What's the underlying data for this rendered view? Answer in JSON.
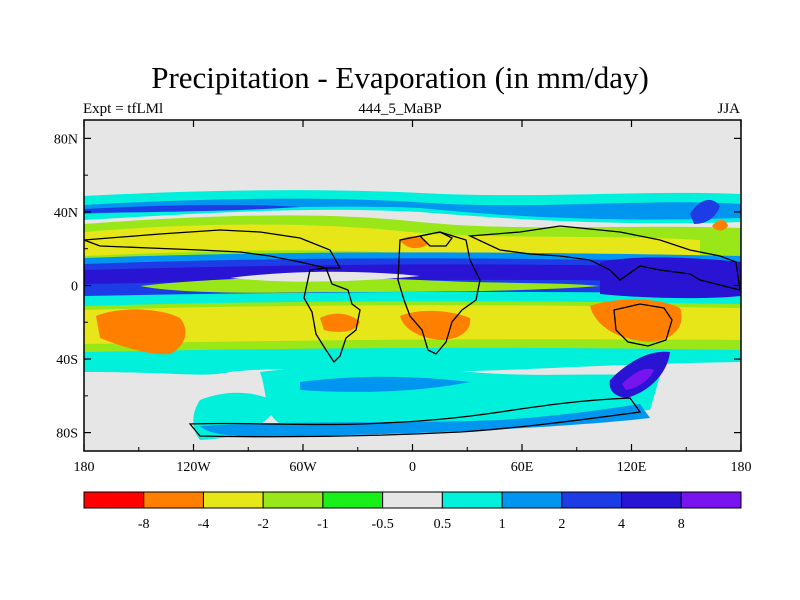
{
  "chart_data": {
    "type": "heatmap",
    "title": "Precipitation - Evaporation (in mm/day)",
    "subtitle_left": "Expt = tfLMl",
    "subtitle_center": "444_5_MaBP",
    "subtitle_right": "JJA",
    "xlim": [
      -180,
      180
    ],
    "ylim": [
      -90,
      90
    ],
    "x_ticks": [
      {
        "value": -180,
        "label": "180"
      },
      {
        "value": -120,
        "label": "120W"
      },
      {
        "value": -60,
        "label": "60W"
      },
      {
        "value": 0,
        "label": "0"
      },
      {
        "value": 60,
        "label": "60E"
      },
      {
        "value": 120,
        "label": "120E"
      },
      {
        "value": 180,
        "label": "180"
      }
    ],
    "y_ticks": [
      {
        "value": 80,
        "label": "80N"
      },
      {
        "value": 40,
        "label": "40N"
      },
      {
        "value": 0,
        "label": "0"
      },
      {
        "value": -40,
        "label": "40S"
      },
      {
        "value": -80,
        "label": "80S"
      }
    ],
    "colorbar": {
      "levels": [
        "-8",
        "-4",
        "-2",
        "-1",
        "-0.5",
        "0.5",
        "1",
        "2",
        "4",
        "8"
      ],
      "colors": [
        "#ff0000",
        "#ff7f00",
        "#e6e619",
        "#99e619",
        "#19f019",
        "#e6e6e6",
        "#00f0dc",
        "#0096f0",
        "#1e3ce6",
        "#2814d2",
        "#7814f0"
      ]
    },
    "bands": [
      {
        "lat": [
          -90,
          -58
        ],
        "value": "0"
      },
      {
        "lat": [
          -58,
          -44
        ],
        "value": "0.5 to 1"
      },
      {
        "lat": [
          -44,
          -38
        ],
        "value": "1 to 2"
      },
      {
        "lat": [
          -38,
          -14
        ],
        "value": "-4 to -1"
      },
      {
        "lat": [
          -14,
          -6
        ],
        "value": "0.5 to 2"
      },
      {
        "lat": [
          -6,
          12
        ],
        "value": "2 to 8"
      },
      {
        "lat": [
          12,
          18
        ],
        "value": "-1 to 1"
      },
      {
        "lat": [
          18,
          32
        ],
        "value": "-4 to -1"
      },
      {
        "lat": [
          32,
          42
        ],
        "value": "1 to 4"
      },
      {
        "lat": [
          42,
          50
        ],
        "value": "0.5 to 2"
      },
      {
        "lat": [
          50,
          90
        ],
        "value": "0"
      }
    ],
    "features": [
      {
        "name": "south-atlantic-dry",
        "lon": [
          -20,
          25
        ],
        "lat": [
          -30,
          -12
        ],
        "value": "-8 to -4"
      },
      {
        "name": "south-pacific-dry",
        "lon": [
          -175,
          -110
        ],
        "lat": [
          -28,
          -12
        ],
        "value": "-8 to -4"
      },
      {
        "name": "indian-ocean-dry",
        "lon": [
          85,
          125
        ],
        "lat": [
          -30,
          -10
        ],
        "value": "-8 to -4"
      },
      {
        "name": "west-pacific-wet",
        "lon": [
          110,
          160
        ],
        "lat": [
          -5,
          12
        ],
        "value": "4 to 8"
      },
      {
        "name": "southern-ocean-wet",
        "lon": [
          120,
          145
        ],
        "lat": [
          -62,
          -48
        ],
        "value": "4 to 8"
      }
    ]
  }
}
